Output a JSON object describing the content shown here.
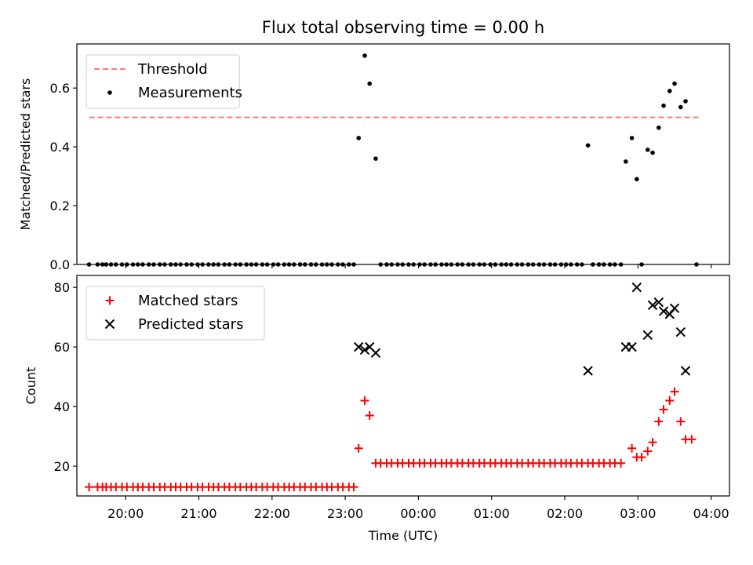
{
  "chart_data": [
    {
      "type": "scatter",
      "title": "Flux total observing time = 0.00 h",
      "xlabel": "",
      "ylabel": "Matched/Predicted stars",
      "x_axis": "time",
      "xlim": [
        "19:20",
        "04:15"
      ],
      "ylim": [
        0,
        0.75
      ],
      "yticks": [
        0.0,
        0.2,
        0.4,
        0.6
      ],
      "ytick_labels": [
        "0.0",
        "0.2",
        "0.4",
        "0.6"
      ],
      "legend_position": "upper-left",
      "threshold": {
        "name": "Threshold",
        "value": 0.5,
        "x": [
          "19:30",
          "03:51"
        ],
        "color": "#ff7a7a",
        "style": "dashed"
      },
      "series": [
        {
          "name": "Measurements",
          "marker": "dot",
          "color": "#000000",
          "points": [
            [
              "19:30",
              0
            ],
            [
              "19:37",
              0
            ],
            [
              "19:41",
              0
            ],
            [
              "19:44",
              0
            ],
            [
              "19:48",
              0
            ],
            [
              "19:52",
              0
            ],
            [
              "19:57",
              0
            ],
            [
              "20:01",
              0
            ],
            [
              "20:06",
              0
            ],
            [
              "20:10",
              0
            ],
            [
              "20:14",
              0
            ],
            [
              "20:19",
              0
            ],
            [
              "20:23",
              0
            ],
            [
              "20:28",
              0
            ],
            [
              "20:32",
              0
            ],
            [
              "20:37",
              0
            ],
            [
              "20:41",
              0
            ],
            [
              "20:45",
              0
            ],
            [
              "20:50",
              0
            ],
            [
              "20:54",
              0
            ],
            [
              "20:59",
              0
            ],
            [
              "21:03",
              0
            ],
            [
              "21:08",
              0
            ],
            [
              "21:12",
              0
            ],
            [
              "21:16",
              0
            ],
            [
              "21:21",
              0
            ],
            [
              "21:25",
              0
            ],
            [
              "21:30",
              0
            ],
            [
              "21:34",
              0
            ],
            [
              "21:39",
              0
            ],
            [
              "21:43",
              0
            ],
            [
              "21:47",
              0
            ],
            [
              "21:52",
              0
            ],
            [
              "21:56",
              0
            ],
            [
              "22:01",
              0
            ],
            [
              "22:05",
              0
            ],
            [
              "22:10",
              0
            ],
            [
              "22:14",
              0
            ],
            [
              "22:18",
              0
            ],
            [
              "22:23",
              0
            ],
            [
              "22:27",
              0
            ],
            [
              "22:32",
              0
            ],
            [
              "22:36",
              0
            ],
            [
              "22:41",
              0
            ],
            [
              "22:45",
              0
            ],
            [
              "22:49",
              0
            ],
            [
              "22:54",
              0
            ],
            [
              "22:58",
              0
            ],
            [
              "23:03",
              0
            ],
            [
              "23:07",
              0
            ],
            [
              "23:11",
              0.43
            ],
            [
              "23:16",
              0.71
            ],
            [
              "23:20",
              0.615
            ],
            [
              "23:25",
              0.36
            ],
            [
              "23:29",
              0
            ],
            [
              "23:34",
              0
            ],
            [
              "23:38",
              0
            ],
            [
              "23:43",
              0
            ],
            [
              "23:47",
              0
            ],
            [
              "23:52",
              0
            ],
            [
              "23:56",
              0
            ],
            [
              "00:01",
              0
            ],
            [
              "00:05",
              0
            ],
            [
              "00:10",
              0
            ],
            [
              "00:14",
              0
            ],
            [
              "00:19",
              0
            ],
            [
              "00:23",
              0
            ],
            [
              "00:27",
              0
            ],
            [
              "00:32",
              0
            ],
            [
              "00:36",
              0
            ],
            [
              "00:41",
              0
            ],
            [
              "00:45",
              0
            ],
            [
              "00:50",
              0
            ],
            [
              "00:54",
              0
            ],
            [
              "00:59",
              0
            ],
            [
              "01:03",
              0
            ],
            [
              "01:08",
              0
            ],
            [
              "01:12",
              0
            ],
            [
              "01:16",
              0
            ],
            [
              "01:21",
              0
            ],
            [
              "01:25",
              0
            ],
            [
              "01:30",
              0
            ],
            [
              "01:34",
              0
            ],
            [
              "01:39",
              0
            ],
            [
              "01:43",
              0
            ],
            [
              "01:48",
              0
            ],
            [
              "01:52",
              0
            ],
            [
              "01:57",
              0
            ],
            [
              "02:01",
              0
            ],
            [
              "02:05",
              0
            ],
            [
              "02:10",
              0
            ],
            [
              "02:14",
              0
            ],
            [
              "02:19",
              0.405
            ],
            [
              "02:23",
              0
            ],
            [
              "02:28",
              0
            ],
            [
              "02:32",
              0
            ],
            [
              "02:37",
              0
            ],
            [
              "02:41",
              0
            ],
            [
              "02:46",
              0
            ],
            [
              "02:50",
              0.35
            ],
            [
              "02:55",
              0.43
            ],
            [
              "02:59",
              0.29
            ],
            [
              "03:03",
              0
            ],
            [
              "03:08",
              0.39
            ],
            [
              "03:12",
              0.38
            ],
            [
              "03:17",
              0.465
            ],
            [
              "03:21",
              0.54
            ],
            [
              "03:26",
              0.59
            ],
            [
              "03:30",
              0.615
            ],
            [
              "03:35",
              0.535
            ],
            [
              "03:39",
              0.555
            ],
            [
              "03:48",
              0
            ]
          ]
        }
      ]
    },
    {
      "type": "scatter",
      "title": "",
      "xlabel": "Time (UTC)",
      "ylabel": "Count",
      "x_axis": "time",
      "xlim": [
        "19:20",
        "04:15"
      ],
      "ylim": [
        10,
        84
      ],
      "yticks": [
        20,
        40,
        60,
        80
      ],
      "ytick_labels": [
        "20",
        "40",
        "60",
        "80"
      ],
      "xticks": [
        "20:00",
        "21:00",
        "22:00",
        "23:00",
        "00:00",
        "01:00",
        "02:00",
        "03:00",
        "04:00"
      ],
      "xtick_labels": [
        "20:00",
        "21:00",
        "22:00",
        "23:00",
        "00:00",
        "01:00",
        "02:00",
        "03:00",
        "04:00"
      ],
      "legend_position": "upper-left",
      "series": [
        {
          "name": "Matched stars",
          "marker": "plus",
          "color": "#ff0000",
          "points": [
            [
              "19:30",
              13
            ],
            [
              "19:37",
              13
            ],
            [
              "19:41",
              13
            ],
            [
              "19:44",
              13
            ],
            [
              "19:48",
              13
            ],
            [
              "19:52",
              13
            ],
            [
              "19:57",
              13
            ],
            [
              "20:01",
              13
            ],
            [
              "20:06",
              13
            ],
            [
              "20:10",
              13
            ],
            [
              "20:14",
              13
            ],
            [
              "20:19",
              13
            ],
            [
              "20:23",
              13
            ],
            [
              "20:28",
              13
            ],
            [
              "20:32",
              13
            ],
            [
              "20:37",
              13
            ],
            [
              "20:41",
              13
            ],
            [
              "20:45",
              13
            ],
            [
              "20:50",
              13
            ],
            [
              "20:54",
              13
            ],
            [
              "20:59",
              13
            ],
            [
              "21:03",
              13
            ],
            [
              "21:08",
              13
            ],
            [
              "21:12",
              13
            ],
            [
              "21:16",
              13
            ],
            [
              "21:21",
              13
            ],
            [
              "21:25",
              13
            ],
            [
              "21:30",
              13
            ],
            [
              "21:34",
              13
            ],
            [
              "21:39",
              13
            ],
            [
              "21:43",
              13
            ],
            [
              "21:47",
              13
            ],
            [
              "21:52",
              13
            ],
            [
              "21:56",
              13
            ],
            [
              "22:01",
              13
            ],
            [
              "22:05",
              13
            ],
            [
              "22:10",
              13
            ],
            [
              "22:14",
              13
            ],
            [
              "22:18",
              13
            ],
            [
              "22:23",
              13
            ],
            [
              "22:27",
              13
            ],
            [
              "22:32",
              13
            ],
            [
              "22:36",
              13
            ],
            [
              "22:41",
              13
            ],
            [
              "22:45",
              13
            ],
            [
              "22:49",
              13
            ],
            [
              "22:54",
              13
            ],
            [
              "22:58",
              13
            ],
            [
              "23:03",
              13
            ],
            [
              "23:07",
              13
            ],
            [
              "23:11",
              26
            ],
            [
              "23:16",
              42
            ],
            [
              "23:20",
              37
            ],
            [
              "23:25",
              21
            ],
            [
              "23:29",
              21
            ],
            [
              "23:34",
              21
            ],
            [
              "23:38",
              21
            ],
            [
              "23:43",
              21
            ],
            [
              "23:47",
              21
            ],
            [
              "23:52",
              21
            ],
            [
              "23:56",
              21
            ],
            [
              "00:01",
              21
            ],
            [
              "00:05",
              21
            ],
            [
              "00:10",
              21
            ],
            [
              "00:14",
              21
            ],
            [
              "00:19",
              21
            ],
            [
              "00:23",
              21
            ],
            [
              "00:27",
              21
            ],
            [
              "00:32",
              21
            ],
            [
              "00:36",
              21
            ],
            [
              "00:41",
              21
            ],
            [
              "00:45",
              21
            ],
            [
              "00:50",
              21
            ],
            [
              "00:54",
              21
            ],
            [
              "00:59",
              21
            ],
            [
              "01:03",
              21
            ],
            [
              "01:08",
              21
            ],
            [
              "01:12",
              21
            ],
            [
              "01:16",
              21
            ],
            [
              "01:21",
              21
            ],
            [
              "01:25",
              21
            ],
            [
              "01:30",
              21
            ],
            [
              "01:34",
              21
            ],
            [
              "01:39",
              21
            ],
            [
              "01:43",
              21
            ],
            [
              "01:48",
              21
            ],
            [
              "01:52",
              21
            ],
            [
              "01:57",
              21
            ],
            [
              "02:01",
              21
            ],
            [
              "02:05",
              21
            ],
            [
              "02:10",
              21
            ],
            [
              "02:14",
              21
            ],
            [
              "02:19",
              21
            ],
            [
              "02:23",
              21
            ],
            [
              "02:28",
              21
            ],
            [
              "02:32",
              21
            ],
            [
              "02:37",
              21
            ],
            [
              "02:41",
              21
            ],
            [
              "02:46",
              21
            ],
            [
              "02:55",
              26
            ],
            [
              "02:59",
              23
            ],
            [
              "03:03",
              23
            ],
            [
              "03:08",
              25
            ],
            [
              "03:12",
              28
            ],
            [
              "03:17",
              35
            ],
            [
              "03:21",
              39
            ],
            [
              "03:26",
              42
            ],
            [
              "03:30",
              45
            ],
            [
              "03:35",
              35
            ],
            [
              "03:39",
              29
            ],
            [
              "03:44",
              29
            ]
          ]
        },
        {
          "name": "Predicted stars",
          "marker": "x",
          "color": "#000000",
          "points": [
            [
              "23:11",
              60
            ],
            [
              "23:16",
              59
            ],
            [
              "23:20",
              60
            ],
            [
              "23:25",
              58
            ],
            [
              "02:19",
              52
            ],
            [
              "02:50",
              60
            ],
            [
              "02:55",
              60
            ],
            [
              "02:59",
              80
            ],
            [
              "03:08",
              64
            ],
            [
              "03:12",
              74
            ],
            [
              "03:17",
              75
            ],
            [
              "03:21",
              72
            ],
            [
              "03:26",
              71
            ],
            [
              "03:30",
              73
            ],
            [
              "03:35",
              65
            ],
            [
              "03:39",
              52
            ]
          ]
        }
      ]
    }
  ]
}
